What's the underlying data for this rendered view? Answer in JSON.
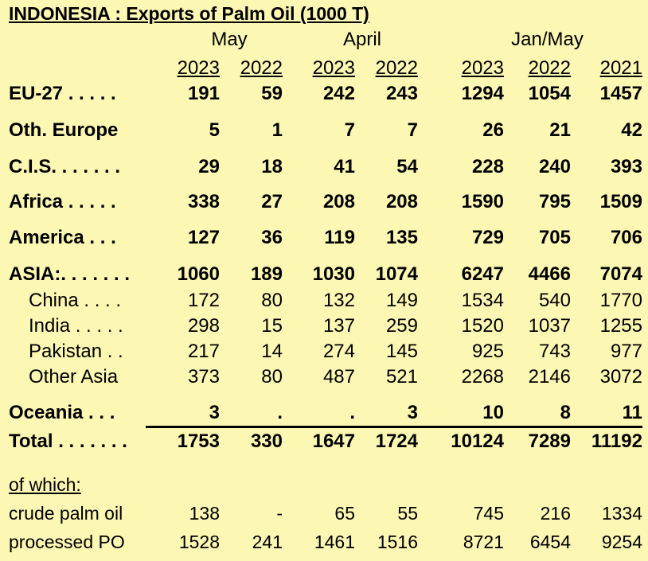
{
  "title": "INDONESIA :  Exports of Palm Oil (1000 T)",
  "groups": [
    "May",
    "April",
    "Jan/May"
  ],
  "years": [
    "2023",
    "2022",
    "2023",
    "2022",
    "2023",
    "2022",
    "2021"
  ],
  "rows": [
    {
      "label": "EU-27 . . . . .",
      "style": "bold",
      "values": [
        "191",
        "59",
        "242",
        "243",
        "1294",
        "1054",
        "1457"
      ]
    },
    {
      "label": "Oth. Europe",
      "style": "bold",
      "values": [
        "5",
        "1",
        "7",
        "7",
        "26",
        "21",
        "42"
      ]
    },
    {
      "label": "C.I.S. . . . . . .",
      "style": "bold",
      "values": [
        "29",
        "18",
        "41",
        "54",
        "228",
        "240",
        "393"
      ]
    },
    {
      "label": "Africa . . . . .",
      "style": "bold",
      "values": [
        "338",
        "27",
        "208",
        "208",
        "1590",
        "795",
        "1509"
      ]
    },
    {
      "label": "America . . .",
      "style": "bold",
      "values": [
        "127",
        "36",
        "119",
        "135",
        "729",
        "705",
        "706"
      ]
    },
    {
      "label": "ASIA:. . . . . . .",
      "style": "bold",
      "values": [
        "1060",
        "189",
        "1030",
        "1074",
        "6247",
        "4466",
        "7074"
      ]
    },
    {
      "label": "China . . . .",
      "style": "sub",
      "values": [
        "172",
        "80",
        "132",
        "149",
        "1534",
        "540",
        "1770"
      ]
    },
    {
      "label": "India . . . . .",
      "style": "sub",
      "values": [
        "298",
        "15",
        "137",
        "259",
        "1520",
        "1037",
        "1255"
      ]
    },
    {
      "label": "Pakistan . .",
      "style": "sub",
      "values": [
        "217",
        "14",
        "274",
        "145",
        "925",
        "743",
        "977"
      ]
    },
    {
      "label": "Other Asia",
      "style": "sub",
      "values": [
        "373",
        "80",
        "487",
        "521",
        "2268",
        "2146",
        "3072"
      ]
    },
    {
      "label": "Oceania . . .",
      "style": "bold",
      "values": [
        "3",
        ".",
        ".",
        "3",
        "10",
        "8",
        "11"
      ]
    },
    {
      "label": "Total . . . . . . .",
      "style": "bold",
      "values": [
        "1753",
        "330",
        "1647",
        "1724",
        "10124",
        "7289",
        "11192"
      ]
    }
  ],
  "of_which": "of which:",
  "detail_rows": [
    {
      "label": "crude palm oil",
      "values": [
        "138",
        "-",
        "65",
        "55",
        "745",
        "216",
        "1334"
      ]
    },
    {
      "label": "processed PO",
      "values": [
        "1528",
        "241",
        "1461",
        "1516",
        "8721",
        "6454",
        "9254"
      ]
    }
  ]
}
